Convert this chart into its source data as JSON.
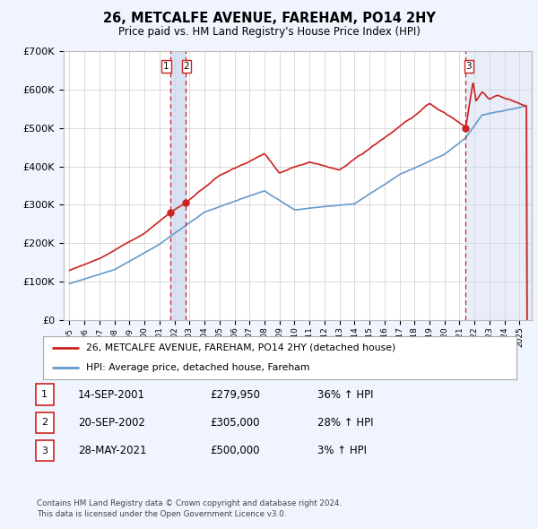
{
  "title": "26, METCALFE AVENUE, FAREHAM, PO14 2HY",
  "subtitle": "Price paid vs. HM Land Registry's House Price Index (HPI)",
  "legend_label_red": "26, METCALFE AVENUE, FAREHAM, PO14 2HY (detached house)",
  "legend_label_blue": "HPI: Average price, detached house, Fareham",
  "footer1": "Contains HM Land Registry data © Crown copyright and database right 2024.",
  "footer2": "This data is licensed under the Open Government Licence v3.0.",
  "transactions": [
    {
      "num": 1,
      "date": "14-SEP-2001",
      "price": "£279,950",
      "pct": "36% ↑ HPI",
      "year": 2001.71
    },
    {
      "num": 2,
      "date": "20-SEP-2002",
      "price": "£305,000",
      "pct": "28% ↑ HPI",
      "year": 2002.72
    },
    {
      "num": 3,
      "date": "28-MAY-2021",
      "price": "£500,000",
      "pct": "3% ↑ HPI",
      "year": 2021.41
    }
  ],
  "transaction_values": [
    279950,
    305000,
    500000
  ],
  "ylim": [
    0,
    700000
  ],
  "xlim_start": 1994.6,
  "xlim_end": 2025.8,
  "background_color": "#f0f4ff",
  "plot_bg_color": "#ffffff",
  "red_color": "#cc2222",
  "blue_color": "#6699cc",
  "grid_color": "#cccccc",
  "shade_color": "#ccd9f0"
}
